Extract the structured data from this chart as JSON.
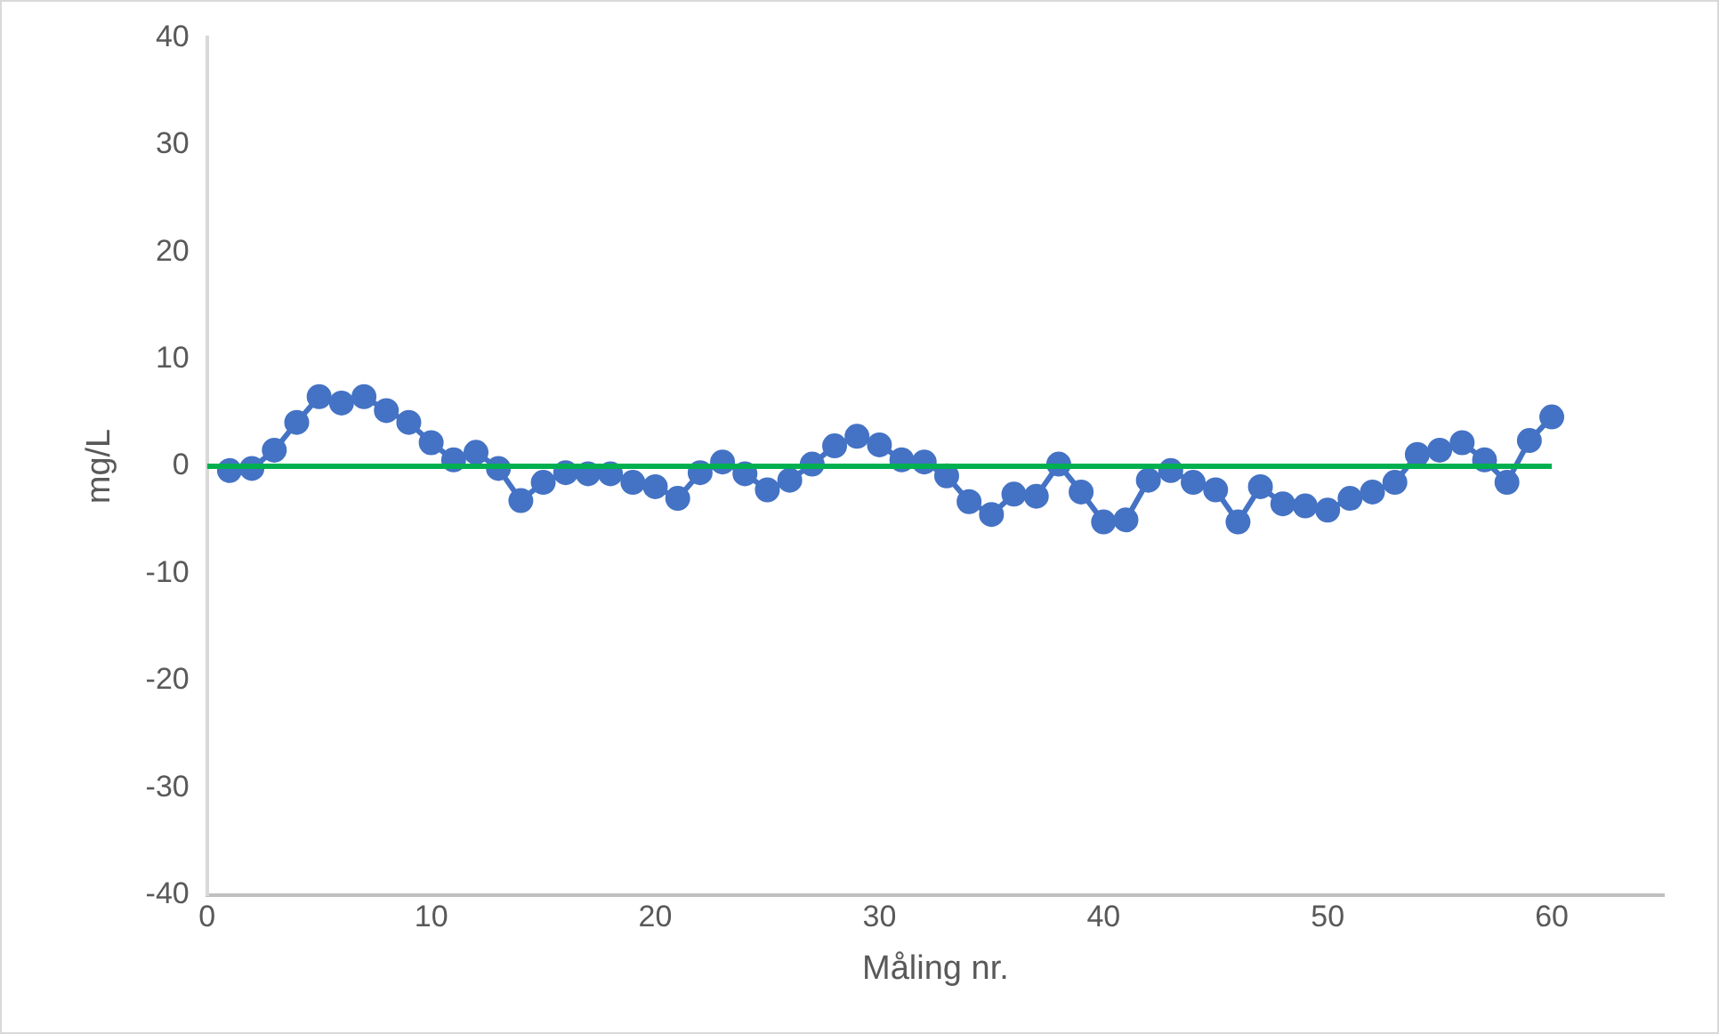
{
  "chart_data": {
    "type": "line",
    "xlabel": "Måling nr.",
    "ylabel": "mg/L",
    "xlim": [
      0,
      65
    ],
    "xticks": [
      0,
      10,
      20,
      30,
      40,
      50,
      60
    ],
    "ylim": [
      -40,
      40
    ],
    "yticks": [
      -40,
      -30,
      -20,
      -10,
      0,
      10,
      20,
      30,
      40
    ],
    "grid": false,
    "legend": false,
    "marker": "circle",
    "line_style": "solid",
    "series": [
      {
        "color": "#4472c4",
        "x": [
          1,
          2,
          3,
          4,
          5,
          6,
          7,
          8,
          9,
          10,
          11,
          12,
          13,
          14,
          15,
          16,
          17,
          18,
          19,
          20,
          21,
          22,
          23,
          24,
          25,
          26,
          27,
          28,
          29,
          30,
          31,
          32,
          33,
          34,
          35,
          36,
          37,
          38,
          39,
          40,
          41,
          42,
          43,
          44,
          45,
          46,
          47,
          48,
          49,
          50,
          51,
          52,
          53,
          54,
          55,
          56,
          57,
          58,
          59,
          60
        ],
        "values": [
          -0.4,
          -0.2,
          1.5,
          4.1,
          6.5,
          5.9,
          6.5,
          5.2,
          4.1,
          2.2,
          0.6,
          1.3,
          -0.2,
          -3.2,
          -1.5,
          -0.6,
          -0.7,
          -0.7,
          -1.5,
          -1.9,
          -3,
          -0.6,
          0.4,
          -0.7,
          -2.2,
          -1.3,
          0.2,
          1.9,
          2.8,
          2,
          0.6,
          0.4,
          -0.9,
          -3.3,
          -4.5,
          -2.6,
          -2.8,
          0.2,
          -2.4,
          -5.2,
          -5,
          -1.3,
          -0.4,
          -1.5,
          -2.2,
          -5.2,
          -1.9,
          -3.5,
          -3.7,
          -4.1,
          -3,
          -2.4,
          -1.5,
          1.1,
          1.5,
          2.2,
          0.6,
          -1.5,
          2.4,
          4.6
        ]
      },
      {
        "type": "line",
        "color": "#00b050",
        "marker": "none",
        "x": [
          0,
          60
        ],
        "values": [
          0,
          0
        ]
      }
    ]
  }
}
